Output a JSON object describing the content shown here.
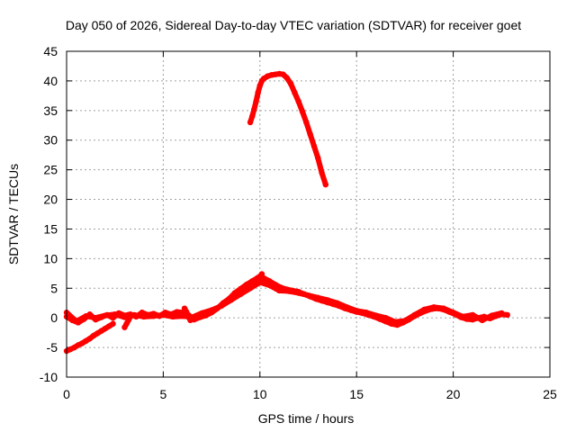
{
  "chart_data": {
    "type": "scatter",
    "title": "Day 050 of 2026, Sidereal Day-to-day VTEC variation (SDTVAR) for receiver goet",
    "xlabel": "GPS time / hours",
    "ylabel": "SDTVAR / TECUs",
    "xlim": [
      0,
      25
    ],
    "ylim": [
      -10,
      45
    ],
    "xticks": [
      0,
      5,
      10,
      15,
      20,
      25
    ],
    "yticks": [
      -10,
      -5,
      0,
      5,
      10,
      15,
      20,
      25,
      30,
      35,
      40,
      45
    ],
    "grid": true,
    "marker_color": "#ff0000",
    "series": [
      {
        "name": "main-band",
        "points": [
          [
            0.0,
            0.2
          ],
          [
            0.3,
            -0.4
          ],
          [
            0.6,
            -0.8
          ],
          [
            0.9,
            -0.2
          ],
          [
            1.2,
            0.6
          ],
          [
            1.5,
            -0.3
          ],
          [
            1.8,
            0.1
          ],
          [
            2.1,
            0.5
          ],
          [
            2.4,
            0.0
          ],
          [
            2.7,
            0.8
          ],
          [
            3.0,
            0.4
          ],
          [
            3.3,
            0.6
          ],
          [
            3.6,
            0.2
          ],
          [
            3.9,
            0.9
          ],
          [
            4.2,
            0.5
          ],
          [
            4.5,
            0.7
          ],
          [
            4.8,
            0.3
          ],
          [
            5.1,
            0.9
          ],
          [
            5.4,
            0.6
          ],
          [
            5.7,
            1.0
          ],
          [
            6.0,
            0.9
          ],
          [
            6.3,
            0.5
          ],
          [
            6.6,
            -0.3
          ],
          [
            6.9,
            0.1
          ],
          [
            7.2,
            0.4
          ],
          [
            7.5,
            0.9
          ],
          [
            7.8,
            1.6
          ],
          [
            8.1,
            2.5
          ],
          [
            8.4,
            3.2
          ],
          [
            8.7,
            4.2
          ],
          [
            9.0,
            4.9
          ],
          [
            9.3,
            5.6
          ],
          [
            9.6,
            6.2
          ],
          [
            9.9,
            6.8
          ],
          [
            10.2,
            6.7
          ],
          [
            10.5,
            6.2
          ],
          [
            10.8,
            5.6
          ],
          [
            11.1,
            5.1
          ],
          [
            11.4,
            4.8
          ],
          [
            11.7,
            4.6
          ],
          [
            12.0,
            4.4
          ],
          [
            12.3,
            4.0
          ],
          [
            12.6,
            3.6
          ],
          [
            12.9,
            3.2
          ],
          [
            13.2,
            2.9
          ],
          [
            13.5,
            2.6
          ],
          [
            13.8,
            2.3
          ],
          [
            14.1,
            2.0
          ],
          [
            14.4,
            1.6
          ],
          [
            14.7,
            1.3
          ],
          [
            15.0,
            1.0
          ],
          [
            15.3,
            0.8
          ],
          [
            15.6,
            0.5
          ],
          [
            15.9,
            0.2
          ],
          [
            16.2,
            -0.2
          ],
          [
            16.5,
            -0.6
          ],
          [
            16.8,
            -1.0
          ],
          [
            17.1,
            -1.2
          ],
          [
            17.4,
            -0.8
          ],
          [
            17.7,
            -0.3
          ],
          [
            18.0,
            0.3
          ],
          [
            18.3,
            0.8
          ],
          [
            18.6,
            1.2
          ],
          [
            18.9,
            1.5
          ],
          [
            19.2,
            1.6
          ],
          [
            19.5,
            1.4
          ],
          [
            19.8,
            1.0
          ],
          [
            20.1,
            0.6
          ],
          [
            20.4,
            0.1
          ],
          [
            20.7,
            -0.2
          ],
          [
            21.0,
            -0.3
          ],
          [
            21.3,
            0.0
          ],
          [
            21.6,
            0.2
          ],
          [
            21.9,
            -0.1
          ],
          [
            22.2,
            0.3
          ],
          [
            22.5,
            0.6
          ],
          [
            22.8,
            0.5
          ]
        ]
      },
      {
        "name": "secondary-band",
        "points": [
          [
            0.0,
            0.9
          ],
          [
            0.5,
            -0.6
          ],
          [
            1.0,
            0.3
          ],
          [
            1.5,
            0.0
          ],
          [
            2.0,
            0.4
          ],
          [
            2.5,
            0.6
          ],
          [
            3.0,
            0.1
          ],
          [
            3.5,
            0.5
          ],
          [
            4.0,
            0.2
          ],
          [
            4.5,
            0.3
          ],
          [
            5.0,
            0.5
          ],
          [
            5.5,
            0.2
          ],
          [
            6.0,
            0.3
          ],
          [
            6.5,
            0.1
          ],
          [
            7.0,
            0.8
          ],
          [
            7.5,
            1.3
          ],
          [
            8.0,
            2.0
          ],
          [
            8.5,
            3.0
          ],
          [
            9.0,
            4.0
          ],
          [
            9.5,
            5.0
          ],
          [
            10.0,
            6.0
          ],
          [
            10.5,
            5.5
          ],
          [
            11.0,
            4.6
          ],
          [
            11.5,
            4.5
          ],
          [
            12.0,
            4.2
          ],
          [
            12.5,
            3.8
          ],
          [
            13.0,
            3.4
          ],
          [
            13.5,
            3.0
          ],
          [
            14.0,
            2.5
          ],
          [
            14.5,
            1.8
          ],
          [
            15.0,
            1.2
          ],
          [
            15.5,
            0.9
          ],
          [
            16.0,
            0.4
          ],
          [
            16.5,
            0.0
          ],
          [
            17.0,
            -0.7
          ],
          [
            17.5,
            -0.5
          ],
          [
            18.0,
            0.5
          ],
          [
            18.5,
            1.4
          ],
          [
            19.0,
            1.8
          ],
          [
            19.5,
            1.6
          ],
          [
            20.0,
            0.9
          ],
          [
            20.5,
            0.2
          ],
          [
            21.0,
            0.5
          ],
          [
            21.5,
            -0.4
          ],
          [
            22.0,
            0.4
          ],
          [
            22.5,
            0.8
          ]
        ]
      },
      {
        "name": "low-start-trace",
        "points": [
          [
            0.0,
            -5.6
          ],
          [
            0.2,
            -5.3
          ],
          [
            0.4,
            -5.0
          ],
          [
            0.6,
            -4.6
          ],
          [
            0.8,
            -4.3
          ],
          [
            1.0,
            -3.9
          ],
          [
            1.2,
            -3.5
          ],
          [
            1.4,
            -3.0
          ],
          [
            1.6,
            -2.6
          ],
          [
            1.8,
            -2.2
          ],
          [
            2.0,
            -1.8
          ],
          [
            2.2,
            -1.4
          ],
          [
            2.4,
            -1.0
          ]
        ]
      },
      {
        "name": "dip-traces",
        "points": [
          [
            3.0,
            -1.6
          ],
          [
            3.1,
            -1.0
          ],
          [
            3.2,
            -0.4
          ],
          [
            3.3,
            0.2
          ],
          [
            6.1,
            1.6
          ],
          [
            6.2,
            1.0
          ],
          [
            6.3,
            0.2
          ],
          [
            6.4,
            -0.4
          ],
          [
            10.1,
            7.4
          ],
          [
            10.0,
            7.0
          ],
          [
            9.9,
            6.6
          ]
        ]
      },
      {
        "name": "high-peak",
        "points": [
          [
            9.5,
            33.0
          ],
          [
            9.6,
            34.0
          ],
          [
            9.7,
            35.2
          ],
          [
            9.8,
            36.5
          ],
          [
            9.9,
            38.0
          ],
          [
            10.0,
            39.2
          ],
          [
            10.1,
            40.0
          ],
          [
            10.2,
            40.4
          ],
          [
            10.4,
            40.8
          ],
          [
            10.6,
            41.0
          ],
          [
            10.8,
            41.1
          ],
          [
            11.0,
            41.2
          ],
          [
            11.2,
            41.1
          ],
          [
            11.4,
            40.5
          ],
          [
            11.6,
            39.5
          ],
          [
            11.8,
            38.0
          ],
          [
            12.0,
            36.5
          ],
          [
            12.2,
            34.8
          ],
          [
            12.4,
            33.0
          ],
          [
            12.6,
            31.0
          ],
          [
            12.8,
            29.0
          ],
          [
            13.0,
            27.0
          ],
          [
            13.2,
            24.5
          ],
          [
            13.4,
            22.5
          ]
        ]
      }
    ]
  }
}
